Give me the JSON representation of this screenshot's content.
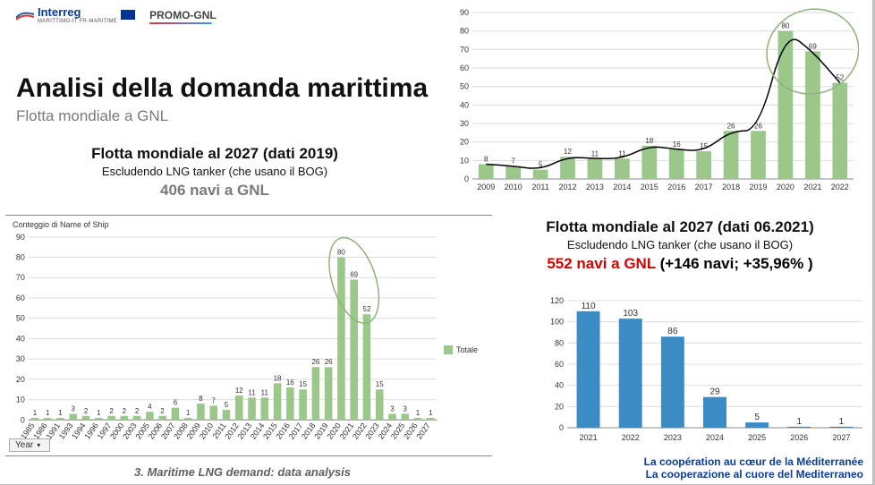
{
  "logos": {
    "interreg": "Interreg",
    "interreg_sub": "MARITTIMO-IT FR-MARITIME",
    "promo": "PROMO-GNL"
  },
  "title": "Analisi della domanda marittima",
  "subtitle": "Flotta mondiale a GNL",
  "block2019": {
    "header": "Flotta mondiale al 2027 (dati 2019)",
    "sub": "Escludendo LNG tanker (che usano il BOG)",
    "big": "406 navi a GNL"
  },
  "block2021": {
    "header": "Flotta mondiale al 2027 (dati 06.2021)",
    "sub": "Escludendo LNG tanker (che usano il BOG)",
    "big_red": "552 navi a GNL",
    "big_black": " (+146 navi; +35,96% )"
  },
  "chart_top": {
    "type": "bar+line",
    "categories": [
      "2009",
      "2010",
      "2011",
      "2012",
      "2013",
      "2014",
      "2015",
      "2016",
      "2017",
      "2018",
      "2019",
      "2020",
      "2021",
      "2022"
    ],
    "values": [
      8,
      7,
      5,
      12,
      11,
      11,
      18,
      16,
      15,
      26,
      26,
      80,
      69,
      52
    ],
    "ylim": [
      0,
      90
    ],
    "ytick_step": 10,
    "bar_color": "#9bc78b",
    "line_color": "#000000",
    "line_width": 1.5,
    "background_color": "#ffffff",
    "grid_color": "#dcdcdc",
    "label_fontsize": 9,
    "value_fontsize": 8,
    "highlight_ellipse": {
      "around_indices": [
        11,
        12,
        13
      ],
      "stroke": "#8cb47a"
    }
  },
  "chart_left": {
    "type": "bar",
    "title": "Conteggio di Name of Ship",
    "categories": [
      "1985",
      "1986",
      "1991",
      "1993",
      "1994",
      "1996",
      "1997",
      "2000",
      "2003",
      "2005",
      "2006",
      "2007",
      "2008",
      "2009",
      "2010",
      "2011",
      "2012",
      "2013",
      "2014",
      "2015",
      "2016",
      "2017",
      "2018",
      "2019",
      "2020",
      "2021",
      "2022",
      "2023",
      "2024",
      "2025",
      "2026",
      "2027"
    ],
    "values": [
      1,
      1,
      1,
      3,
      2,
      1,
      2,
      2,
      2,
      4,
      2,
      6,
      1,
      8,
      7,
      5,
      12,
      11,
      11,
      18,
      16,
      15,
      26,
      26,
      80,
      69,
      52,
      15,
      3,
      3,
      1,
      1
    ],
    "ylim": [
      0,
      90
    ],
    "ytick_step": 10,
    "bar_color": "#9bc78b",
    "grid_color": "#d8d8d8",
    "label_fontsize": 8,
    "value_fontsize": 8,
    "legend_label": "Totale",
    "year_button": "Year",
    "highlight_ellipse": {
      "around_indices": [
        24,
        25,
        26
      ],
      "stroke": "#8cb47a"
    }
  },
  "chart_right": {
    "type": "bar",
    "categories": [
      "2021",
      "2022",
      "2023",
      "2024",
      "2025",
      "2026",
      "2027"
    ],
    "values": [
      110,
      103,
      86,
      29,
      5,
      1,
      1
    ],
    "ylim": [
      0,
      120
    ],
    "ytick_step": 20,
    "bar_color": "#3b8bc4",
    "grid_color": "#dcdcdc",
    "label_fontsize": 10,
    "value_fontsize": 10
  },
  "footer_title": "3. Maritime LNG demand: data analysis",
  "footer_coop_line1": "La coopération au cœur de la Méditerranée",
  "footer_coop_line2": "La cooperazione al cuore del Mediterraneo"
}
